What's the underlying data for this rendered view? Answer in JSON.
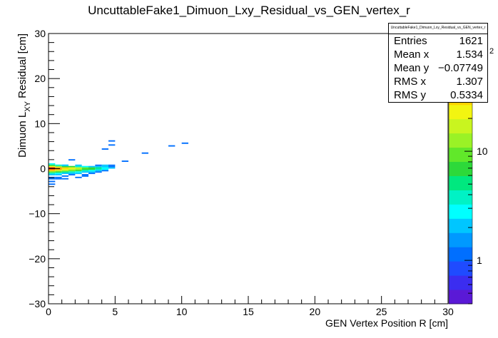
{
  "chart_data": {
    "type": "heatmap",
    "title": "UncuttableFake1_Dimuon_Lxy_Residual_vs_GEN_vertex_r",
    "xlabel": "GEN Vertex Position R [cm]",
    "ylabel": "Dimuon L_XY Residual [cm]",
    "ylabel_main": "Dimuon L",
    "ylabel_sub": "XY",
    "ylabel_rest": " Residual [cm]",
    "xlim": [
      0,
      30
    ],
    "ylim": [
      -30,
      30
    ],
    "x_ticks": [
      0,
      5,
      10,
      15,
      20,
      25,
      30
    ],
    "x_tick_labels": [
      "0",
      "5",
      "10",
      "15",
      "20",
      "25",
      "30"
    ],
    "y_ticks": [
      -30,
      -20,
      -10,
      0,
      10,
      20,
      30
    ],
    "y_tick_labels": [
      "−30",
      "−20",
      "−10",
      "0",
      "10",
      "20",
      "30"
    ],
    "bin_width_x": 0.5,
    "bin_height_y": 0.3,
    "colorbar": {
      "scale": "log",
      "min": 0.4,
      "max": 120,
      "tick_labels": [
        "1",
        "10"
      ],
      "tick_values": [
        1,
        10
      ],
      "exponent_label": "2"
    },
    "cells": [
      [
        0.25,
        0.15,
        100
      ],
      [
        0.25,
        -0.15,
        60
      ],
      [
        0.25,
        0.45,
        25
      ],
      [
        0.25,
        -0.45,
        30
      ],
      [
        0.25,
        0.75,
        8
      ],
      [
        0.25,
        -0.75,
        10
      ],
      [
        0.25,
        1.05,
        3
      ],
      [
        0.25,
        -1.05,
        4
      ],
      [
        0.25,
        -1.35,
        2
      ],
      [
        0.25,
        -1.95,
        1
      ],
      [
        0.25,
        -2.25,
        1
      ],
      [
        0.25,
        -2.85,
        1
      ],
      [
        0.25,
        -3.45,
        1
      ],
      [
        0.75,
        0.15,
        45
      ],
      [
        0.75,
        -0.15,
        40
      ],
      [
        0.75,
        0.45,
        12
      ],
      [
        0.75,
        -0.45,
        18
      ],
      [
        0.75,
        0.75,
        4
      ],
      [
        0.75,
        -0.75,
        6
      ],
      [
        0.75,
        -1.05,
        3
      ],
      [
        0.75,
        -1.35,
        2
      ],
      [
        0.75,
        -1.95,
        1
      ],
      [
        0.75,
        -2.25,
        1
      ],
      [
        1.25,
        0.15,
        30
      ],
      [
        1.25,
        -0.15,
        25
      ],
      [
        1.25,
        0.45,
        8
      ],
      [
        1.25,
        -0.45,
        12
      ],
      [
        1.25,
        0.75,
        3
      ],
      [
        1.25,
        -0.75,
        5
      ],
      [
        1.25,
        -1.05,
        2
      ],
      [
        1.25,
        -1.65,
        1
      ],
      [
        1.25,
        -2.25,
        1
      ],
      [
        1.25,
        0.75,
        2
      ],
      [
        1.75,
        0.15,
        22
      ],
      [
        1.75,
        -0.15,
        18
      ],
      [
        1.75,
        0.45,
        6
      ],
      [
        1.75,
        -0.45,
        9
      ],
      [
        1.75,
        -0.75,
        4
      ],
      [
        1.75,
        -1.05,
        2
      ],
      [
        1.75,
        1.95,
        1
      ],
      [
        1.75,
        -1.35,
        1
      ],
      [
        2.25,
        0.15,
        15
      ],
      [
        2.25,
        -0.15,
        12
      ],
      [
        2.25,
        0.45,
        4
      ],
      [
        2.25,
        -0.45,
        6
      ],
      [
        2.25,
        -0.75,
        3
      ],
      [
        2.25,
        -1.05,
        2
      ],
      [
        2.25,
        -1.95,
        1
      ],
      [
        2.25,
        0.75,
        2
      ],
      [
        2.75,
        0.15,
        10
      ],
      [
        2.75,
        -0.15,
        8
      ],
      [
        2.75,
        0.45,
        3
      ],
      [
        2.75,
        -0.45,
        4
      ],
      [
        2.75,
        -0.75,
        2
      ],
      [
        2.75,
        -1.35,
        1
      ],
      [
        2.75,
        -1.65,
        1
      ],
      [
        3.25,
        0.15,
        7
      ],
      [
        3.25,
        -0.15,
        6
      ],
      [
        3.25,
        0.45,
        2
      ],
      [
        3.25,
        -0.45,
        3
      ],
      [
        3.25,
        -0.75,
        2
      ],
      [
        3.25,
        -1.05,
        1
      ],
      [
        3.75,
        0.15,
        5
      ],
      [
        3.75,
        -0.15,
        4
      ],
      [
        3.75,
        0.45,
        2
      ],
      [
        3.75,
        -0.45,
        2
      ],
      [
        3.75,
        -0.75,
        1
      ],
      [
        3.75,
        0.75,
        1
      ],
      [
        4.25,
        0.15,
        3
      ],
      [
        4.25,
        -0.15,
        3
      ],
      [
        4.25,
        0.45,
        2
      ],
      [
        4.25,
        0.75,
        2
      ],
      [
        4.25,
        4.35,
        1
      ],
      [
        4.25,
        -0.45,
        1
      ],
      [
        4.75,
        0.45,
        1
      ],
      [
        4.75,
        0.15,
        2
      ],
      [
        4.75,
        0.75,
        1
      ],
      [
        4.75,
        5.25,
        1
      ],
      [
        4.75,
        6.15,
        1
      ],
      [
        5.75,
        1.65,
        1
      ],
      [
        7.25,
        3.45,
        1
      ],
      [
        9.25,
        5.05,
        1
      ],
      [
        10.25,
        5.65,
        1
      ]
    ]
  },
  "stats": {
    "name": "UncuttableFake1_Dimuon_Lxy_Residual_vs_GEN_vertex_r",
    "rows": [
      {
        "key": "Entries",
        "value": "1621"
      },
      {
        "key": "Mean x",
        "value": "1.534"
      },
      {
        "key": "Mean y",
        "value": "−0.07749"
      },
      {
        "key": "RMS x",
        "value": "1.307"
      },
      {
        "key": "RMS y",
        "value": "0.5334"
      }
    ]
  }
}
